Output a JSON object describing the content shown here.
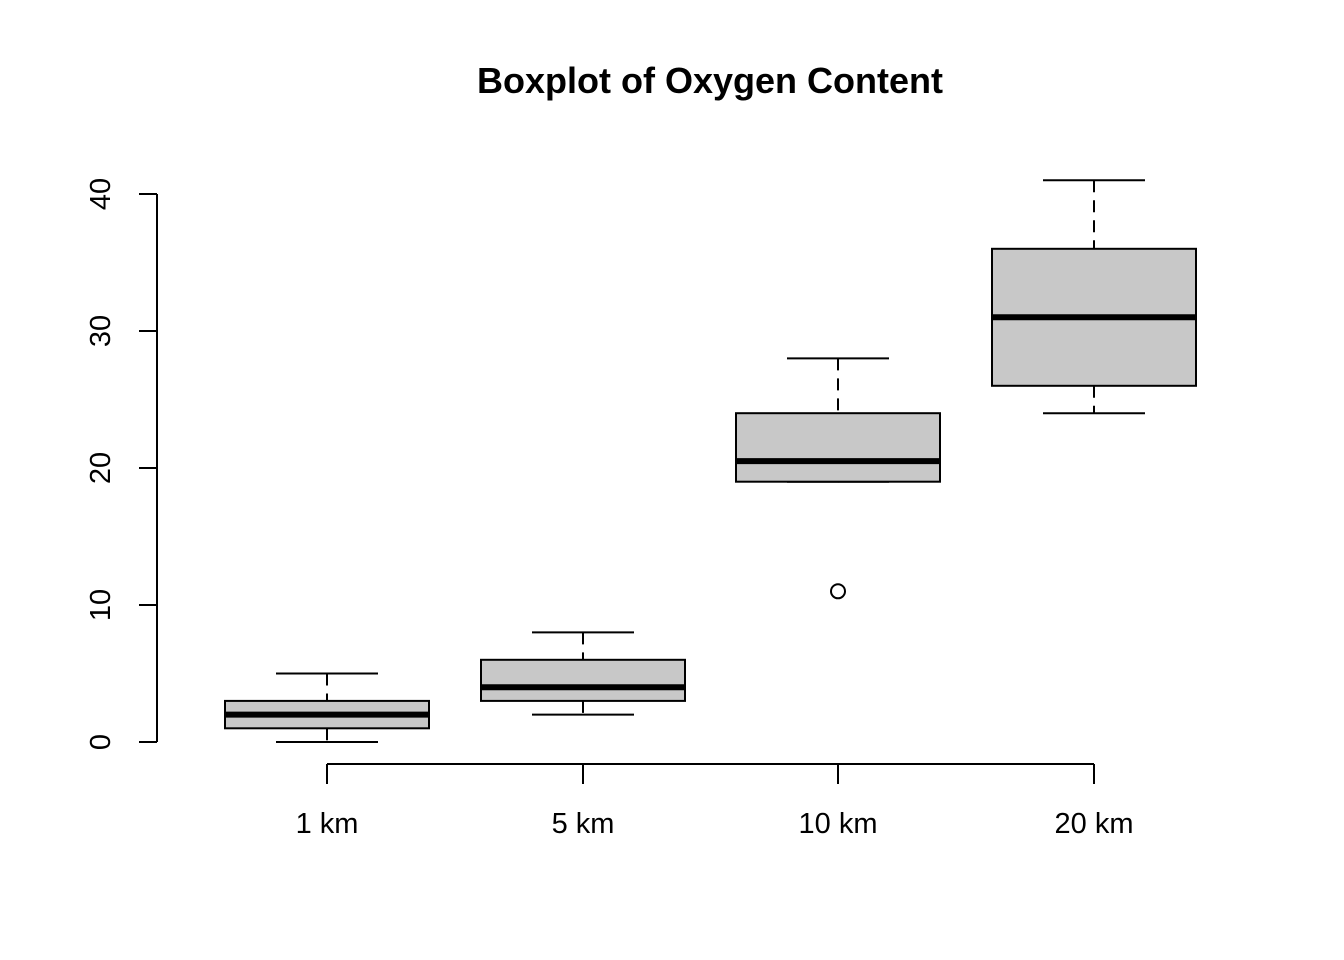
{
  "chart_data": {
    "type": "boxplot",
    "title": "Boxplot of Oxygen Content",
    "xlabel": "",
    "ylabel": "",
    "categories": [
      "1 km",
      "5 km",
      "10 km",
      "20 km"
    ],
    "ylim": [
      0,
      40
    ],
    "yticks": [
      0,
      10,
      20,
      30,
      40
    ],
    "grid": false,
    "boxes": [
      {
        "category": "1 km",
        "whisker_low": 0,
        "q1": 1,
        "median": 2,
        "q3": 3,
        "whisker_high": 5,
        "outliers": []
      },
      {
        "category": "5 km",
        "whisker_low": 2,
        "q1": 3,
        "median": 4,
        "q3": 6,
        "whisker_high": 8,
        "outliers": []
      },
      {
        "category": "10 km",
        "whisker_low": 19,
        "q1": 19,
        "median": 20.5,
        "q3": 24,
        "whisker_high": 28,
        "outliers": [
          11
        ]
      },
      {
        "category": "20 km",
        "whisker_low": 24,
        "q1": 26,
        "median": 31,
        "q3": 36,
        "whisker_high": 41,
        "outliers": []
      }
    ],
    "colors": {
      "box_fill": "#c8c8c8",
      "stroke": "#000000",
      "background": "#ffffff"
    }
  }
}
